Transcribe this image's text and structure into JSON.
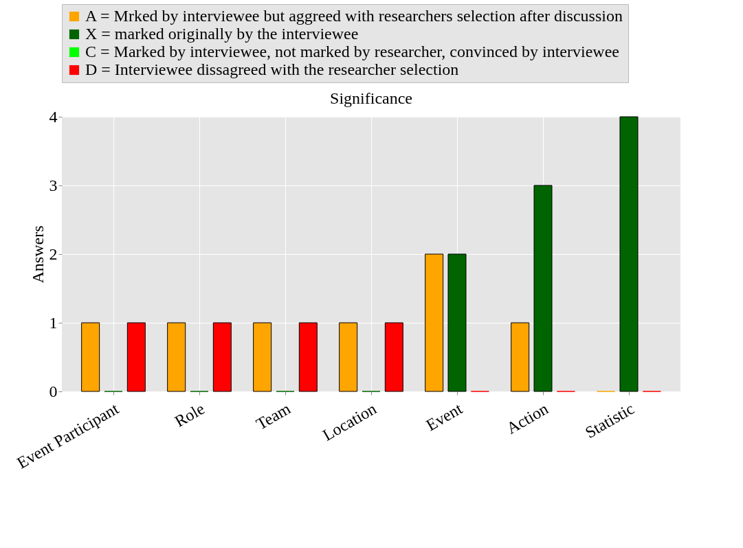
{
  "chart_data": {
    "type": "bar",
    "title": "Significance",
    "ylabel": "Answers",
    "categories": [
      "Event Participant",
      "Role",
      "Team",
      "Location",
      "Event",
      "Action",
      "Statistic"
    ],
    "series": [
      {
        "name": "A = Mrked by interviewee but aggreed with researchers selection after discussion",
        "color": "#ffa500",
        "values": [
          1,
          1,
          1,
          1,
          2,
          1,
          0
        ]
      },
      {
        "name": "X = marked originally by the interviewee",
        "color": "#006400",
        "values": [
          0,
          0,
          0,
          0,
          2,
          3,
          4
        ]
      },
      {
        "name": "C = Marked by interviewee, not marked by researcher, convinced by interviewee",
        "color": "#00ff00",
        "values": [
          null,
          null,
          null,
          null,
          null,
          null,
          null
        ]
      },
      {
        "name": "D = Interviewee dissagreed with the researcher selection",
        "color": "#ff0000",
        "values": [
          1,
          1,
          1,
          1,
          0,
          0,
          0
        ]
      }
    ],
    "ylim": [
      0,
      4
    ],
    "yticks": [
      0,
      1,
      2,
      3,
      4
    ],
    "grid": true,
    "legend": "top left"
  }
}
